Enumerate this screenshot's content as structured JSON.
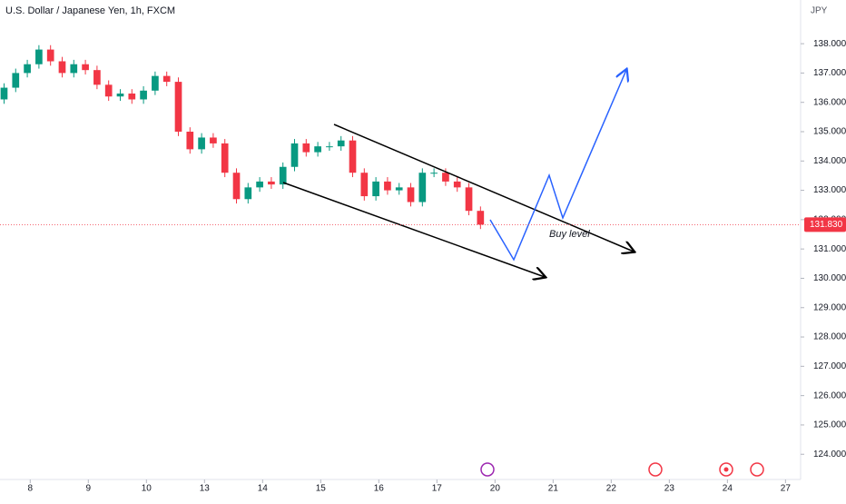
{
  "chart_data": {
    "type": "candlestick",
    "title": "U.S. Dollar / Japanese Yen, 1h, FXCM",
    "currency": "JPY",
    "annotation": "Buy level",
    "up_color": "#089981",
    "down_color": "#f23645",
    "xlim": [
      -0.52,
      13.26
    ],
    "xticks": [
      {
        "value": 0,
        "label": "8"
      },
      {
        "value": 1,
        "label": "9"
      },
      {
        "value": 2,
        "label": "10"
      },
      {
        "value": 3,
        "label": "13"
      },
      {
        "value": 4,
        "label": "14"
      },
      {
        "value": 5,
        "label": "15"
      },
      {
        "value": 6,
        "label": "16"
      },
      {
        "value": 7,
        "label": "17"
      },
      {
        "value": 8,
        "label": "20"
      },
      {
        "value": 9,
        "label": "21"
      },
      {
        "value": 10,
        "label": "22"
      },
      {
        "value": 11,
        "label": "23"
      },
      {
        "value": 12,
        "label": "24"
      },
      {
        "value": 13,
        "label": "27"
      }
    ],
    "ylim": [
      139.49,
      123.14
    ],
    "yticks": [
      {
        "value": 124,
        "label": "124.000"
      },
      {
        "value": 125,
        "label": "125.000"
      },
      {
        "value": 126,
        "label": "126.000"
      },
      {
        "value": 127,
        "label": "127.000"
      },
      {
        "value": 128,
        "label": "128.000"
      },
      {
        "value": 129,
        "label": "129.000"
      },
      {
        "value": 130,
        "label": "130.000"
      },
      {
        "value": 131,
        "label": "131.000"
      },
      {
        "value": 132,
        "label": "132.000"
      },
      {
        "value": 133,
        "label": "133.000"
      },
      {
        "value": 134,
        "label": "134.000"
      },
      {
        "value": 135,
        "label": "135.000"
      },
      {
        "value": 136,
        "label": "136.000"
      },
      {
        "value": 137,
        "label": "137.000"
      },
      {
        "value": 138,
        "label": "138.000"
      }
    ],
    "last_price": {
      "value": 131.83,
      "label": "131.830"
    },
    "x": [
      -0.45,
      -0.25,
      -0.05,
      0.15,
      0.35,
      0.55,
      0.75,
      0.95,
      1.15,
      1.35,
      1.55,
      1.75,
      1.95,
      2.15,
      2.35,
      2.55,
      2.75,
      2.95,
      3.15,
      3.35,
      3.55,
      3.75,
      3.95,
      4.15,
      4.35,
      4.55,
      4.75,
      4.95,
      5.15,
      5.35,
      5.55,
      5.75,
      5.95,
      6.15,
      6.35,
      6.55,
      6.75,
      6.95,
      7.15,
      7.35,
      7.55,
      7.75
    ],
    "open": [
      136.1,
      136.5,
      137.0,
      137.3,
      137.8,
      137.4,
      137.0,
      137.3,
      137.1,
      136.6,
      136.2,
      136.3,
      136.1,
      136.4,
      136.9,
      136.7,
      135.0,
      134.4,
      134.8,
      134.6,
      133.6,
      132.7,
      133.1,
      133.3,
      133.2,
      133.8,
      134.6,
      134.3,
      134.5,
      134.5,
      134.7,
      133.6,
      132.8,
      133.3,
      133.0,
      133.1,
      132.6,
      133.6,
      133.6,
      133.3,
      133.1,
      132.3
    ],
    "high": [
      136.65,
      137.15,
      137.45,
      137.95,
      137.95,
      137.55,
      137.45,
      137.45,
      137.25,
      136.75,
      136.45,
      136.45,
      136.55,
      137.05,
      137.05,
      136.85,
      135.15,
      134.95,
      134.95,
      134.75,
      133.75,
      133.25,
      133.45,
      133.45,
      133.95,
      134.75,
      134.75,
      134.65,
      134.65,
      134.85,
      134.85,
      133.75,
      133.45,
      133.45,
      133.25,
      133.25,
      133.75,
      133.75,
      133.75,
      133.45,
      133.25,
      132.45
    ],
    "low": [
      135.95,
      136.35,
      136.85,
      137.15,
      137.25,
      136.85,
      136.85,
      136.95,
      136.45,
      136.05,
      136.05,
      135.95,
      135.95,
      136.25,
      136.55,
      134.85,
      134.25,
      134.25,
      134.45,
      133.45,
      132.55,
      132.55,
      132.95,
      133.05,
      133.05,
      133.65,
      134.15,
      134.15,
      134.35,
      134.35,
      133.45,
      132.65,
      132.65,
      132.85,
      132.85,
      132.45,
      132.45,
      133.45,
      133.15,
      132.95,
      132.15,
      131.68
    ],
    "close": [
      136.5,
      137.0,
      137.3,
      137.8,
      137.4,
      137.0,
      137.3,
      137.1,
      136.6,
      136.2,
      136.3,
      136.1,
      136.4,
      136.9,
      136.7,
      135.0,
      134.4,
      134.8,
      134.6,
      133.6,
      132.7,
      133.1,
      133.3,
      133.2,
      133.8,
      134.6,
      134.3,
      134.5,
      134.5,
      134.7,
      133.6,
      132.8,
      133.3,
      133.0,
      133.1,
      132.6,
      133.6,
      133.6,
      133.3,
      133.1,
      132.3,
      131.83
    ]
  }
}
